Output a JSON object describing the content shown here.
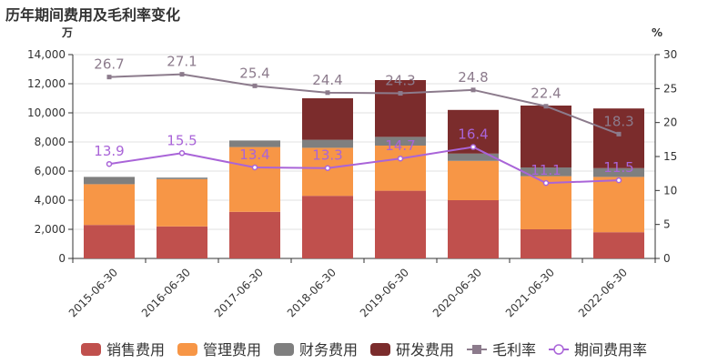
{
  "chart_data": {
    "type": "bar",
    "title": "历年期间费用及毛利率变化",
    "left_unit": "万",
    "right_unit": "%",
    "categories": [
      "2015-06-30",
      "2016-06-30",
      "2017-06-30",
      "2018-06-30",
      "2019-06-30",
      "2020-06-30",
      "2021-06-30",
      "2022-06-30"
    ],
    "ylim_left": [
      0,
      14000
    ],
    "yticks_left": [
      "0",
      "2,000",
      "4,000",
      "6,000",
      "8,000",
      "10,000",
      "12,000",
      "14,000"
    ],
    "ylim_right": [
      0,
      30
    ],
    "yticks_right": [
      "0",
      "5",
      "10",
      "15",
      "20",
      "25",
      "30"
    ],
    "series": [
      {
        "name": "销售费用",
        "kind": "bar",
        "color": "#c0504d",
        "values": [
          2300,
          2200,
          3200,
          4300,
          4650,
          4000,
          2000,
          1800
        ]
      },
      {
        "name": "管理费用",
        "kind": "bar",
        "color": "#f79646",
        "values": [
          2800,
          3250,
          4450,
          3300,
          3100,
          2700,
          3650,
          3800
        ]
      },
      {
        "name": "财务费用",
        "kind": "bar",
        "color": "#7f7f7f",
        "values": [
          500,
          100,
          450,
          550,
          600,
          500,
          600,
          600
        ]
      },
      {
        "name": "研发费用",
        "kind": "bar",
        "color": "#7b2c2c",
        "values": [
          0,
          0,
          0,
          2850,
          3900,
          3000,
          4250,
          4100
        ]
      },
      {
        "name": "毛利率",
        "kind": "line",
        "color": "#8c7b8c",
        "marker": "square",
        "values": [
          26.7,
          27.1,
          25.4,
          24.4,
          24.3,
          24.8,
          22.4,
          18.3
        ]
      },
      {
        "name": "期间费用率",
        "kind": "line",
        "color": "#a964d8",
        "marker": "circle",
        "values": [
          13.9,
          15.5,
          13.4,
          13.3,
          14.7,
          16.4,
          11.1,
          11.5
        ]
      }
    ],
    "legend_position": "bottom"
  }
}
